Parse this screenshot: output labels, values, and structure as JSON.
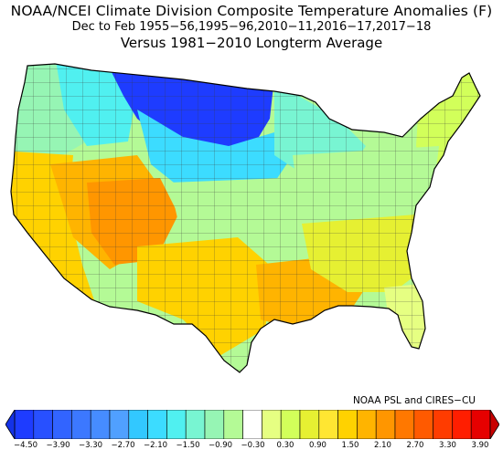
{
  "title": {
    "line1": "NOAA/NCEI Climate Division Composite Temperature Anomalies (F)",
    "line2": "Dec to Feb  1955−56,1995−96,2010−11,2016−17,2017−18",
    "line3": "Versus 1981−2010 Longterm Average"
  },
  "credit": "NOAA PSL and CIRES−CU",
  "legend": {
    "colors": [
      "#1e3cff",
      "#2850ff",
      "#3264ff",
      "#3c78ff",
      "#468cff",
      "#50a0ff",
      "#32c8ff",
      "#3cdcff",
      "#50f0f0",
      "#78f5d2",
      "#96f5b4",
      "#b4fa96",
      "#ffffff",
      "#e6ff82",
      "#d2ff5a",
      "#e6f032",
      "#ffe632",
      "#ffd200",
      "#ffb400",
      "#ff9600",
      "#ff7800",
      "#ff5a00",
      "#ff3c00",
      "#ff1e00",
      "#e60000"
    ],
    "ticks": [
      "−4.50",
      "−3.90",
      "−3.30",
      "−2.70",
      "−2.10",
      "−1.50",
      "−0.90",
      "−0.30",
      "0.30",
      "0.90",
      "1.50",
      "2.10",
      "2.70",
      "3.30",
      "3.90"
    ]
  },
  "regions": [
    {
      "name": "pacific-northwest",
      "color": "#96f5b4"
    },
    {
      "name": "northern-rockies",
      "color": "#50f0f0"
    },
    {
      "name": "northern-plains",
      "color": "#1e3cff"
    },
    {
      "name": "upper-midwest",
      "color": "#3cdcff"
    },
    {
      "name": "great-lakes",
      "color": "#78f5d2"
    },
    {
      "name": "new-england",
      "color": "#d2ff5a"
    },
    {
      "name": "california",
      "color": "#ffd200"
    },
    {
      "name": "great-basin",
      "color": "#ffb400"
    },
    {
      "name": "four-corners",
      "color": "#ff9600"
    },
    {
      "name": "central-plains",
      "color": "#b4fa96"
    },
    {
      "name": "mid-atlantic",
      "color": "#b4fa96"
    },
    {
      "name": "southern-plains",
      "color": "#ffd200"
    },
    {
      "name": "gulf-coast",
      "color": "#ffb400"
    },
    {
      "name": "southeast",
      "color": "#e6f032"
    },
    {
      "name": "florida",
      "color": "#e6ff82"
    }
  ]
}
